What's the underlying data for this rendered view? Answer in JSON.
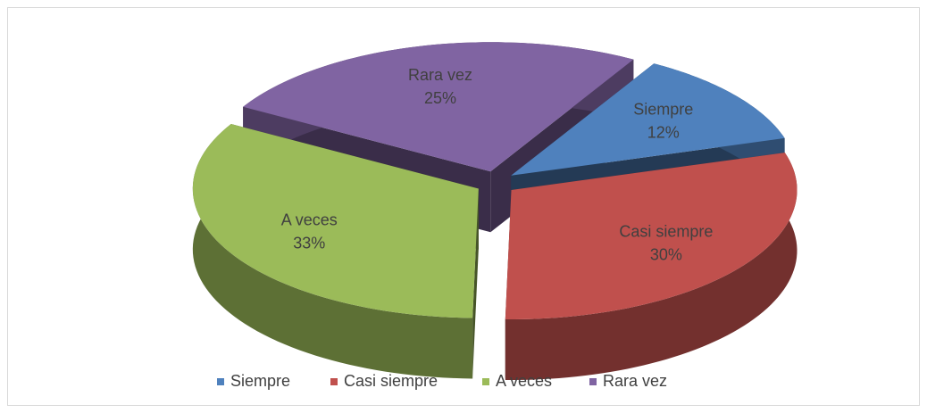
{
  "chart_data": {
    "type": "pie3d",
    "categories": [
      "Siempre",
      "Casi siempre",
      "A veces",
      "Rara vez"
    ],
    "values": [
      12,
      30,
      33,
      25
    ],
    "value_labels": [
      "12%",
      "30%",
      "33%",
      "25%"
    ],
    "colors": [
      "#4f81bd",
      "#c0504d",
      "#9bbb59",
      "#8064a2"
    ],
    "legend": "bottom"
  }
}
